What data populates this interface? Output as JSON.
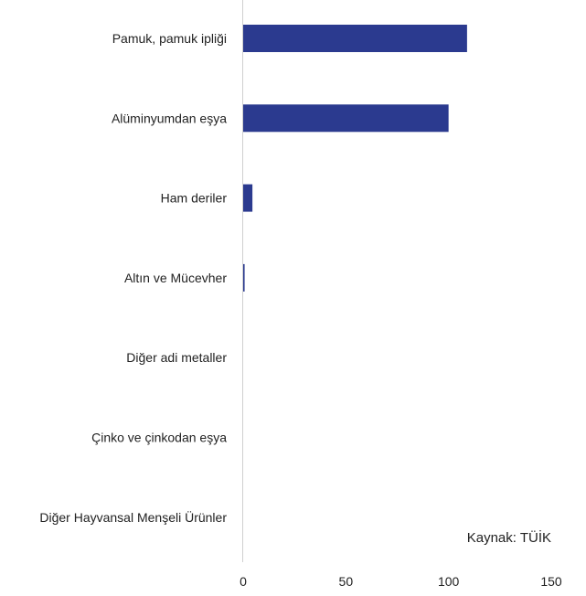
{
  "chart_data": {
    "type": "bar",
    "orientation": "horizontal",
    "categories": [
      "Pamuk, pamuk ipliği",
      "Alüminyumdan eşya",
      "Ham deriler",
      "Altın ve Mücevher",
      "Diğer adi metaller",
      "Çinko ve çinkodan eşya",
      "Diğer Hayvansal Menşeli Ürünler"
    ],
    "values": [
      109,
      100,
      4.5,
      0.7,
      0,
      0,
      0
    ],
    "xlim": [
      0,
      150
    ],
    "xticks": [
      "0",
      "50",
      "100",
      "150"
    ],
    "grid": false,
    "bar_color": "#2b3a8f",
    "axis_color": "#d0d0d0",
    "title": "",
    "xlabel": "",
    "ylabel": "",
    "annotation": "Kaynak: TÜİK"
  }
}
